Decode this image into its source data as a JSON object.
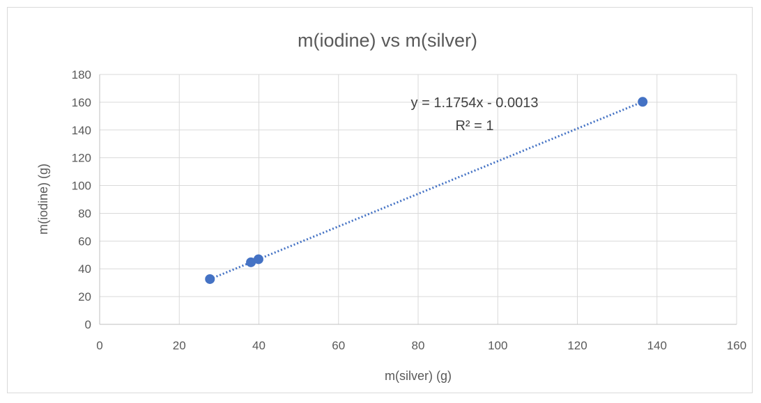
{
  "chart_data": {
    "type": "scatter",
    "title": "m(iodine) vs m(silver)",
    "xlabel": "m(silver) (g)",
    "ylabel": "m(iodine) (g)",
    "xlim": [
      0,
      160
    ],
    "ylim": [
      0,
      180
    ],
    "x_ticks": [
      "0",
      "20",
      "40",
      "60",
      "80",
      "100",
      "120",
      "140",
      "160"
    ],
    "y_ticks": [
      "0",
      "20",
      "40",
      "60",
      "80",
      "100",
      "120",
      "140",
      "160",
      "180"
    ],
    "grid": true,
    "series": [
      {
        "points": [
          {
            "x": 27.7,
            "y": 32.6
          },
          {
            "x": 38.0,
            "y": 44.7
          },
          {
            "x": 39.9,
            "y": 46.9
          },
          {
            "x": 136.4,
            "y": 160.3
          }
        ],
        "color": "#4472c4"
      }
    ],
    "trendline": {
      "type": "linear",
      "slope": 1.1754,
      "intercept": -0.0013,
      "x_range": [
        27.7,
        136.4
      ],
      "equation_label": "y = 1.1754x - 0.0013",
      "r2_label": "R² = 1",
      "color": "#4472c4"
    }
  }
}
